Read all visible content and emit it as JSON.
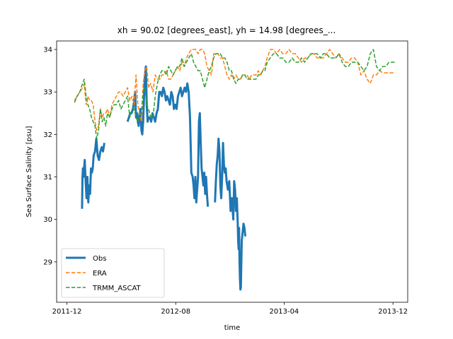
{
  "chart_data": {
    "type": "line",
    "title": "xh = 90.02 [degrees_east], yh = 14.98 [degrees_...",
    "xlabel": "time",
    "ylabel": "Sea Surface Salinity [psu]",
    "x_ticks": [
      "2011-12",
      "2012-08",
      "2013-04",
      "2013-12"
    ],
    "x_range": [
      "2011-11-08",
      "2014-01-03"
    ],
    "y_ticks": [
      "29",
      "30",
      "31",
      "32",
      "33",
      "34"
    ],
    "ylim": [
      28.05,
      34.2
    ],
    "legend_location": "lower-left",
    "grid": false,
    "series": [
      {
        "name": "Obs",
        "color": "#1f77b4",
        "style": "solid-thick",
        "x": [
          "2012-01-04",
          "2012-01-05",
          "2012-01-06",
          "2012-01-07",
          "2012-01-10",
          "2012-01-12",
          "2012-01-14",
          "2012-01-16",
          "2012-01-18",
          "2012-01-20",
          "2012-01-22",
          "2012-01-24",
          "2012-01-26",
          "2012-01-28",
          "2012-01-30",
          "2012-02-02",
          "2012-02-05",
          "2012-02-08",
          "2012-02-11",
          "2012-02-14",
          "2012-02-17",
          "2012-02-20",
          "2012-02-23",
          null,
          "2012-04-15",
          "2012-04-18",
          "2012-04-21",
          "2012-04-24",
          "2012-04-27",
          "2012-04-30",
          "2012-05-02",
          "2012-05-04",
          "2012-05-06",
          "2012-05-08",
          "2012-05-10",
          "2012-05-12",
          "2012-05-14",
          "2012-05-16",
          "2012-05-18",
          "2012-05-20",
          "2012-05-22",
          "2012-05-24",
          "2012-05-26",
          "2012-05-28",
          "2012-05-30",
          "2012-06-01",
          "2012-06-04",
          "2012-06-07",
          "2012-06-10",
          "2012-06-13",
          "2012-06-16",
          "2012-06-19",
          "2012-06-22",
          "2012-06-25",
          "2012-06-28",
          "2012-07-01",
          "2012-07-04",
          "2012-07-07",
          "2012-07-10",
          "2012-07-13",
          "2012-07-16",
          "2012-07-19",
          "2012-07-22",
          "2012-07-25",
          "2012-07-28",
          "2012-07-31",
          "2012-08-03",
          "2012-08-06",
          "2012-08-09",
          "2012-08-12",
          "2012-08-15",
          "2012-08-18",
          "2012-08-21",
          "2012-08-24",
          "2012-08-27",
          "2012-08-30",
          "2012-09-02",
          "2012-09-05",
          "2012-09-08",
          "2012-09-10",
          "2012-09-12",
          "2012-09-14",
          "2012-09-16",
          "2012-09-18",
          "2012-09-20",
          "2012-09-22",
          "2012-09-24",
          "2012-09-26",
          "2012-09-28",
          "2012-09-30",
          "2012-10-02",
          "2012-10-04",
          "2012-10-06",
          "2012-10-08",
          "2012-10-10",
          "2012-10-12",
          null,
          "2012-10-28",
          "2012-10-30",
          "2012-11-01",
          "2012-11-03",
          "2012-11-05",
          "2012-11-07",
          "2012-11-09",
          "2012-11-11",
          "2012-11-13",
          "2012-11-15",
          "2012-11-17",
          "2012-11-19",
          "2012-11-21",
          "2012-11-23",
          "2012-11-26",
          "2012-11-29",
          "2012-12-02",
          "2012-12-05",
          "2012-12-08",
          "2012-12-10",
          "2012-12-12",
          "2012-12-14",
          "2012-12-16",
          "2012-12-18",
          "2012-12-19",
          "2012-12-20",
          "2012-12-21",
          "2012-12-22",
          "2012-12-23",
          "2012-12-24",
          "2012-12-25",
          "2012-12-27",
          "2012-12-29",
          "2012-12-31",
          "2013-01-02",
          "2013-01-04"
        ],
        "y": [
          30.25,
          31.0,
          31.2,
          31.0,
          31.4,
          30.9,
          30.5,
          31.0,
          30.4,
          30.8,
          30.6,
          31.2,
          31.1,
          31.2,
          31.5,
          31.6,
          31.9,
          31.5,
          31.4,
          31.6,
          31.7,
          31.6,
          31.8,
          null,
          32.3,
          32.4,
          32.5,
          32.5,
          32.6,
          32.8,
          33.0,
          32.4,
          32.5,
          32.3,
          32.2,
          32.5,
          32.6,
          32.1,
          32.0,
          32.3,
          32.9,
          33.4,
          33.6,
          32.7,
          32.3,
          32.4,
          32.4,
          32.3,
          32.5,
          32.4,
          32.3,
          32.5,
          32.6,
          33.0,
          33.0,
          32.9,
          33.1,
          33.0,
          32.8,
          32.9,
          32.8,
          32.7,
          33.0,
          32.9,
          32.6,
          32.7,
          32.6,
          32.9,
          33.0,
          33.1,
          32.9,
          33.0,
          33.1,
          33.0,
          33.2,
          33.0,
          32.4,
          31.1,
          31.0,
          30.8,
          30.5,
          31.0,
          30.4,
          30.7,
          31.0,
          32.3,
          32.5,
          31.8,
          31.2,
          31.0,
          30.8,
          31.1,
          30.6,
          31.0,
          30.6,
          30.3,
          null,
          30.4,
          30.9,
          31.3,
          31.5,
          31.9,
          31.6,
          30.8,
          30.5,
          31.0,
          31.8,
          31.3,
          31.1,
          31.2,
          30.9,
          30.7,
          30.9,
          30.2,
          30.5,
          30.0,
          30.9,
          30.7,
          30.2,
          30.5,
          29.9,
          29.5,
          29.3,
          29.8,
          29.0,
          28.6,
          28.35,
          28.4,
          29.5,
          29.7,
          29.9,
          29.8,
          29.6
        ]
      },
      {
        "name": "ERA",
        "color": "#ff7f0e",
        "style": "dashed",
        "x": [
          "2011-12-18",
          "2011-12-24",
          "2011-12-30",
          "2012-01-05",
          "2012-01-09",
          "2012-01-13",
          "2012-01-17",
          "2012-01-21",
          "2012-01-25",
          "2012-01-29",
          "2012-02-02",
          "2012-02-06",
          "2012-02-10",
          "2012-02-14",
          "2012-02-18",
          "2012-02-22",
          "2012-02-26",
          "2012-03-01",
          "2012-03-06",
          "2012-03-11",
          "2012-03-16",
          "2012-03-21",
          "2012-03-26",
          "2012-03-31",
          "2012-04-05",
          "2012-04-10",
          "2012-04-15",
          "2012-04-20",
          "2012-04-25",
          "2012-04-30",
          "2012-05-04",
          "2012-05-08",
          "2012-05-12",
          "2012-05-16",
          "2012-05-20",
          "2012-05-24",
          "2012-05-28",
          "2012-06-01",
          "2012-06-06",
          "2012-06-11",
          "2012-06-16",
          "2012-06-21",
          "2012-06-26",
          "2012-07-01",
          "2012-07-06",
          "2012-07-11",
          "2012-07-16",
          "2012-07-21",
          "2012-07-26",
          "2012-07-31",
          "2012-08-05",
          "2012-08-10",
          "2012-08-15",
          "2012-08-20",
          "2012-08-25",
          "2012-08-30",
          "2012-09-05",
          "2012-09-10",
          "2012-09-15",
          "2012-09-20",
          "2012-09-25",
          "2012-09-30",
          "2012-10-05",
          "2012-10-10",
          "2012-10-15",
          "2012-10-20",
          "2012-10-25",
          "2012-10-30",
          "2012-11-04",
          "2012-11-09",
          "2012-11-14",
          "2012-11-19",
          "2012-11-24",
          "2012-11-29",
          "2012-12-04",
          "2012-12-09",
          "2012-12-14",
          "2012-12-19",
          "2012-12-24",
          "2012-12-29",
          "2013-01-03",
          "2013-01-08",
          "2013-01-13",
          "2013-01-18",
          "2013-01-23",
          "2013-01-28",
          "2013-02-02",
          "2013-02-07",
          "2013-02-12",
          "2013-02-17",
          "2013-02-22",
          "2013-03-01",
          "2013-03-08",
          "2013-03-15",
          "2013-03-22",
          "2013-03-29",
          "2013-04-05",
          "2013-04-12",
          "2013-04-19",
          "2013-04-26",
          "2013-05-03",
          "2013-05-10",
          "2013-05-17",
          "2013-05-24",
          "2013-05-31",
          "2013-06-07",
          "2013-06-14",
          "2013-06-21",
          "2013-06-28",
          "2013-07-05",
          "2013-07-12",
          "2013-07-19",
          "2013-07-26",
          "2013-08-02",
          "2013-08-09",
          "2013-08-16",
          "2013-08-23",
          "2013-08-30",
          "2013-09-06",
          "2013-09-13",
          "2013-09-20",
          "2013-09-27",
          "2013-10-04",
          "2013-10-11",
          "2013-10-18",
          "2013-10-25",
          "2013-11-01",
          "2013-11-08",
          "2013-11-15",
          "2013-11-22",
          "2013-11-29",
          "2013-12-06"
        ],
        "y": [
          32.8,
          32.9,
          33.0,
          33.1,
          33.2,
          32.7,
          32.9,
          32.8,
          32.8,
          32.7,
          32.3,
          32.1,
          32.2,
          32.6,
          32.4,
          32.5,
          32.5,
          32.6,
          32.4,
          32.7,
          32.8,
          32.9,
          33.0,
          33.0,
          32.9,
          33.0,
          33.1,
          32.8,
          32.9,
          32.7,
          33.4,
          32.7,
          32.5,
          32.3,
          33.2,
          33.5,
          33.6,
          33.1,
          33.2,
          33.0,
          33.4,
          33.3,
          33.3,
          33.4,
          33.4,
          33.5,
          33.3,
          33.3,
          33.4,
          33.5,
          33.6,
          33.5,
          33.7,
          33.6,
          33.8,
          33.9,
          34.0,
          34.0,
          34.0,
          33.9,
          34.0,
          34.0,
          33.9,
          33.6,
          33.5,
          33.4,
          33.9,
          33.9,
          33.9,
          33.8,
          33.8,
          33.6,
          33.4,
          33.3,
          33.4,
          33.3,
          33.4,
          33.3,
          33.3,
          33.4,
          33.4,
          33.4,
          33.3,
          33.4,
          33.4,
          33.4,
          33.5,
          33.4,
          33.5,
          33.6,
          33.8,
          34.0,
          34.0,
          33.9,
          34.0,
          33.9,
          33.9,
          34.0,
          33.9,
          33.9,
          33.8,
          33.7,
          33.8,
          33.8,
          33.9,
          33.9,
          33.8,
          33.8,
          33.8,
          33.9,
          34.0,
          33.9,
          33.8,
          33.9,
          33.8,
          33.7,
          33.7,
          33.8,
          33.8,
          33.7,
          33.4,
          33.5,
          33.3,
          33.2,
          33.4,
          33.4,
          33.5,
          33.45,
          33.45,
          33.45,
          33.45,
          33.45
        ]
      },
      {
        "name": "TRMM_ASCAT",
        "color": "#2ca02c",
        "style": "dashed",
        "x": [
          "2011-12-18",
          "2011-12-24",
          "2011-12-30",
          "2012-01-05",
          "2012-01-09",
          "2012-01-13",
          "2012-01-17",
          "2012-01-21",
          "2012-01-25",
          "2012-01-29",
          "2012-02-02",
          "2012-02-06",
          "2012-02-10",
          "2012-02-14",
          "2012-02-18",
          "2012-02-22",
          "2012-02-26",
          "2012-03-01",
          "2012-03-06",
          "2012-03-11",
          "2012-03-16",
          "2012-03-21",
          "2012-03-26",
          "2012-03-31",
          "2012-04-05",
          "2012-04-10",
          "2012-04-15",
          "2012-04-20",
          "2012-04-25",
          "2012-04-30",
          "2012-05-04",
          "2012-05-08",
          "2012-05-12",
          "2012-05-16",
          "2012-05-20",
          "2012-05-24",
          "2012-05-28",
          "2012-06-01",
          "2012-06-06",
          "2012-06-11",
          "2012-06-16",
          "2012-06-21",
          "2012-06-26",
          "2012-07-01",
          "2012-07-06",
          "2012-07-11",
          "2012-07-16",
          "2012-07-21",
          "2012-07-26",
          "2012-07-31",
          "2012-08-05",
          "2012-08-10",
          "2012-08-15",
          "2012-08-20",
          "2012-08-25",
          "2012-08-30",
          "2012-09-05",
          "2012-09-10",
          "2012-09-15",
          "2012-09-20",
          "2012-09-25",
          "2012-09-30",
          "2012-10-05",
          "2012-10-10",
          "2012-10-15",
          "2012-10-20",
          "2012-10-25",
          "2012-10-30",
          "2012-11-04",
          "2012-11-09",
          "2012-11-14",
          "2012-11-19",
          "2012-11-24",
          "2012-11-29",
          "2012-12-04",
          "2012-12-09",
          "2012-12-14",
          "2012-12-19",
          "2012-12-24",
          "2012-12-29",
          "2013-01-03",
          "2013-01-08",
          "2013-01-13",
          "2013-01-18",
          "2013-01-23",
          "2013-01-28",
          "2013-02-02",
          "2013-02-07",
          "2013-02-12",
          "2013-02-17",
          "2013-02-22",
          "2013-03-01",
          "2013-03-08",
          "2013-03-15",
          "2013-03-22",
          "2013-03-29",
          "2013-04-05",
          "2013-04-12",
          "2013-04-19",
          "2013-04-26",
          "2013-05-03",
          "2013-05-10",
          "2013-05-17",
          "2013-05-24",
          "2013-05-31",
          "2013-06-07",
          "2013-06-14",
          "2013-06-21",
          "2013-06-28",
          "2013-07-05",
          "2013-07-12",
          "2013-07-19",
          "2013-07-26",
          "2013-08-02",
          "2013-08-09",
          "2013-08-16",
          "2013-08-23",
          "2013-08-30",
          "2013-09-06",
          "2013-09-13",
          "2013-09-20",
          "2013-09-27",
          "2013-10-04",
          "2013-10-11",
          "2013-10-18",
          "2013-10-25",
          "2013-11-01",
          "2013-11-08",
          "2013-11-15",
          "2013-11-22",
          "2013-11-29",
          "2013-12-06"
        ],
        "y": [
          32.75,
          32.9,
          33.0,
          33.2,
          33.3,
          32.9,
          32.7,
          32.6,
          32.4,
          32.3,
          32.2,
          31.9,
          32.1,
          32.6,
          32.3,
          32.4,
          32.2,
          32.5,
          32.4,
          32.6,
          32.7,
          32.7,
          32.8,
          32.6,
          32.7,
          32.8,
          32.9,
          32.4,
          32.6,
          32.6,
          32.4,
          32.3,
          32.4,
          32.5,
          33.0,
          33.1,
          32.7,
          32.6,
          32.4,
          32.4,
          32.9,
          33.2,
          33.4,
          33.5,
          33.5,
          33.4,
          33.6,
          33.5,
          33.4,
          33.5,
          33.6,
          33.6,
          33.8,
          33.6,
          33.7,
          33.8,
          33.9,
          33.7,
          33.6,
          33.5,
          33.5,
          33.3,
          33.1,
          33.3,
          33.5,
          33.6,
          33.8,
          33.9,
          33.9,
          33.9,
          33.8,
          33.8,
          33.7,
          33.5,
          33.5,
          33.3,
          33.2,
          33.3,
          33.3,
          33.4,
          33.4,
          33.3,
          33.3,
          33.3,
          33.3,
          33.3,
          33.4,
          33.4,
          33.5,
          33.5,
          33.7,
          33.8,
          33.9,
          33.9,
          33.8,
          33.8,
          33.7,
          33.7,
          33.8,
          33.7,
          33.7,
          33.8,
          33.7,
          33.8,
          33.9,
          33.9,
          33.9,
          33.8,
          33.9,
          33.9,
          33.8,
          33.8,
          33.8,
          33.9,
          33.7,
          33.6,
          33.6,
          33.7,
          33.7,
          33.7,
          33.6,
          33.5,
          33.6,
          33.9,
          34.0,
          33.6,
          33.5,
          33.6,
          33.6,
          33.7,
          33.7,
          33.7
        ]
      }
    ]
  }
}
